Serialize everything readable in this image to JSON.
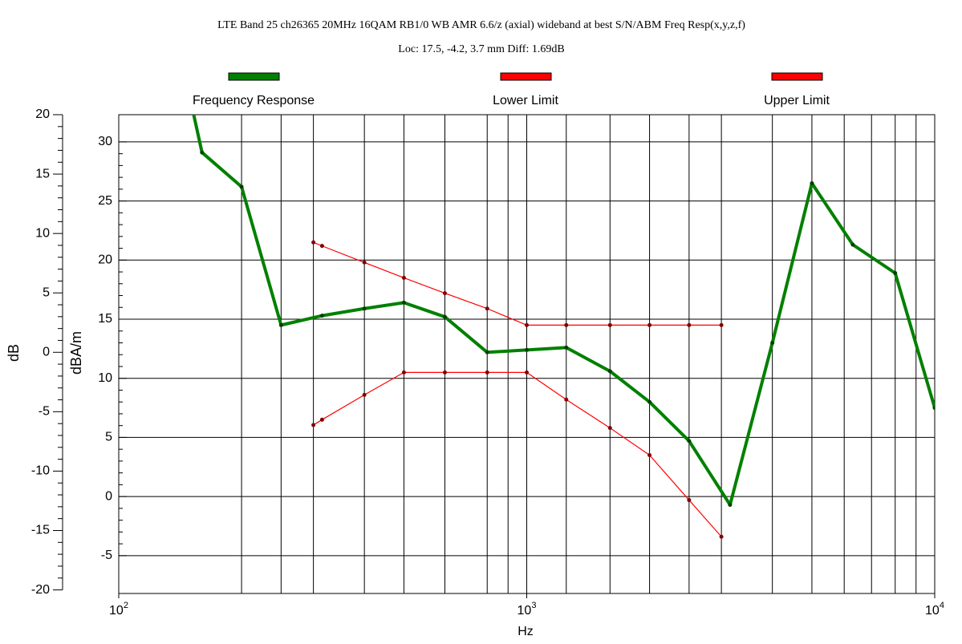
{
  "chart_data": {
    "type": "line",
    "title": "LTE Band 25 ch26365 20MHz 16QAM RB1/0 WB AMR 6.6/z (axial) wideband at best S/N/ABM Freq Resp(x,y,z,f)",
    "subtitle": "Loc: 17.5, -4.2, 3.7 mm Diff: 1.69dB",
    "xlabel": "Hz",
    "ylabel": "dBA/m",
    "y2label": "dB",
    "xscale": "log",
    "xlim": [
      100,
      10000
    ],
    "xticks": [
      {
        "value": 100,
        "label": "10",
        "exponent": "2"
      },
      {
        "value": 1000,
        "label": "10",
        "exponent": "3"
      },
      {
        "value": 10000,
        "label": "10",
        "exponent": "4"
      }
    ],
    "x_grid": [
      200,
      250,
      300,
      400,
      500,
      630,
      800,
      900,
      1000,
      1250,
      1600,
      2000,
      2500,
      3000,
      4000,
      5000,
      6000,
      7000,
      8000,
      9000
    ],
    "ylim": [
      -8.2,
      32.3
    ],
    "yticks": [
      -5,
      0,
      5,
      10,
      15,
      20,
      25,
      30
    ],
    "y2lim": [
      -20.3,
      20
    ],
    "y2ticks": [
      -20,
      -15,
      -10,
      -5,
      0,
      5,
      10,
      15,
      20
    ],
    "grid": true,
    "series": [
      {
        "name": "Frequency Response",
        "color": "#008000",
        "marker_color": "#004000",
        "x": [
          150,
          160,
          200,
          250,
          315,
          400,
          500,
          630,
          800,
          1000,
          1250,
          1600,
          2000,
          2500,
          3150,
          4000,
          5000,
          6300,
          8000,
          10000
        ],
        "values": [
          33.5,
          29.1,
          26.2,
          14.5,
          15.3,
          15.9,
          16.4,
          15.2,
          12.2,
          12.4,
          12.6,
          10.6,
          8.0,
          4.7,
          -0.7,
          13.0,
          26.5,
          21.3,
          18.9,
          7.5
        ]
      },
      {
        "name": "Lower Limit",
        "color": "#ff0000",
        "marker_color": "#800000",
        "x": [
          300,
          315,
          400,
          500,
          630,
          800,
          1000,
          1250,
          1600,
          2000,
          2500,
          3000
        ],
        "values": [
          6.05,
          6.5,
          8.6,
          10.5,
          10.5,
          10.5,
          10.5,
          8.2,
          5.8,
          3.5,
          -0.3,
          -3.4
        ]
      },
      {
        "name": "Upper Limit",
        "color": "#ff0000",
        "marker_color": "#800000",
        "x": [
          300,
          315,
          400,
          500,
          630,
          800,
          1000,
          1250,
          1600,
          2000,
          2500,
          3000
        ],
        "values": [
          21.5,
          21.2,
          19.8,
          18.5,
          17.2,
          15.9,
          14.5,
          14.5,
          14.5,
          14.5,
          14.5,
          14.5
        ]
      }
    ]
  }
}
